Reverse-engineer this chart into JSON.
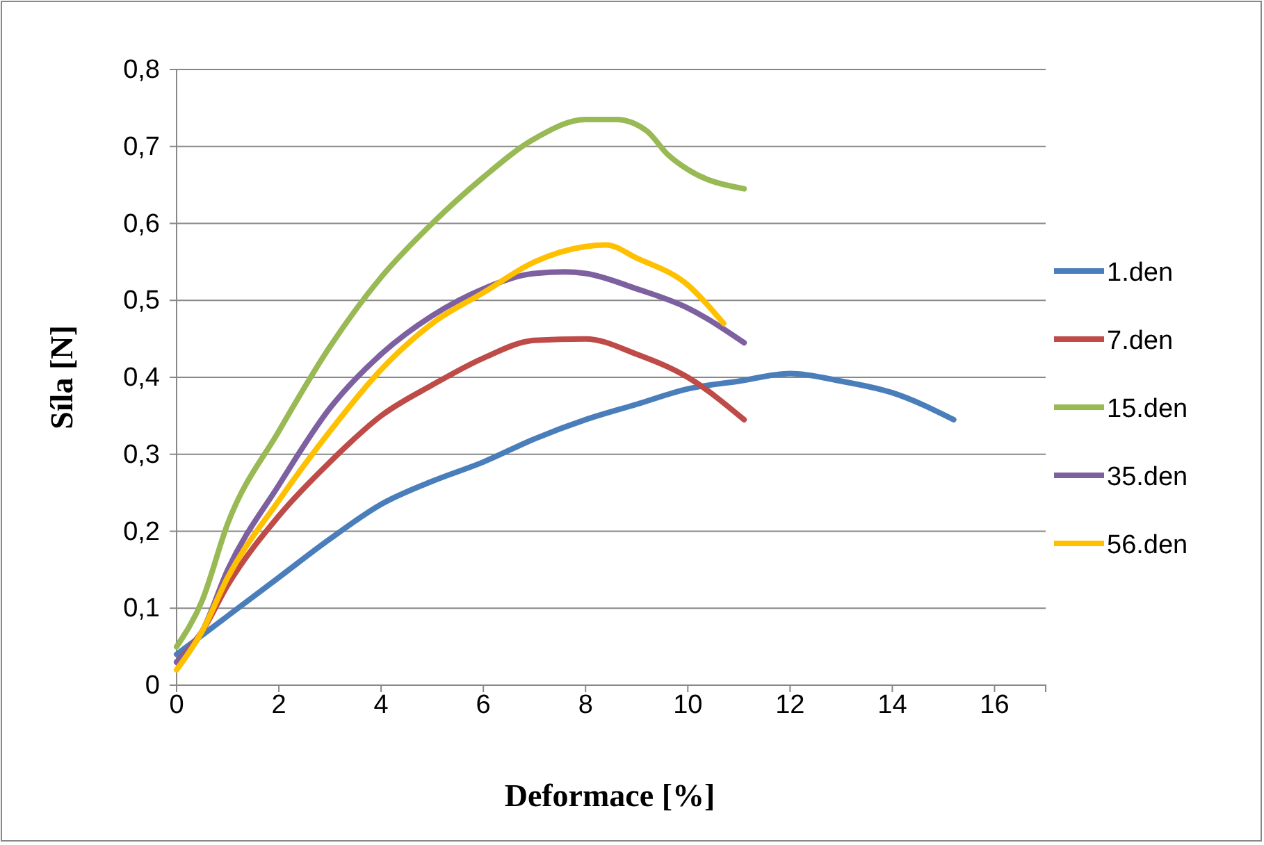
{
  "chart_data": {
    "type": "line",
    "xlabel": "Deformace [%]",
    "ylabel": "Síla [N]",
    "xlim": [
      0,
      17
    ],
    "xticks": [
      0,
      2,
      4,
      6,
      8,
      10,
      12,
      14,
      16
    ],
    "ylim": [
      0,
      0.8
    ],
    "yticks": [
      {
        "value": 0,
        "label": "0"
      },
      {
        "value": 0.1,
        "label": "0,1"
      },
      {
        "value": 0.2,
        "label": "0,2"
      },
      {
        "value": 0.3,
        "label": "0,3"
      },
      {
        "value": 0.4,
        "label": "0,4"
      },
      {
        "value": 0.5,
        "label": "0,5"
      },
      {
        "value": 0.6,
        "label": "0,6"
      },
      {
        "value": 0.7,
        "label": "0,7"
      },
      {
        "value": 0.8,
        "label": "0,8"
      }
    ],
    "grid": "y",
    "legend": "right",
    "marker": "none",
    "line_style": "solid",
    "series": [
      {
        "name": "1.den",
        "color": "#4a7ebb",
        "x": [
          0,
          0.3,
          1,
          2,
          3,
          4,
          5,
          6,
          7,
          8,
          9,
          10,
          11,
          12,
          13,
          14,
          15.2
        ],
        "values": [
          0.04,
          0.055,
          0.09,
          0.14,
          0.19,
          0.235,
          0.265,
          0.29,
          0.32,
          0.345,
          0.365,
          0.385,
          0.395,
          0.405,
          0.395,
          0.38,
          0.345
        ]
      },
      {
        "name": "7.den",
        "color": "#be4b48",
        "x": [
          0,
          0.5,
          1,
          2,
          3,
          4,
          5,
          6,
          7,
          8,
          9,
          10,
          11.1
        ],
        "values": [
          0.03,
          0.07,
          0.13,
          0.22,
          0.29,
          0.35,
          0.39,
          0.425,
          0.448,
          0.45,
          0.43,
          0.4,
          0.345
        ]
      },
      {
        "name": "15.den",
        "color": "#98b954",
        "x": [
          0,
          0.5,
          1,
          2,
          3,
          4,
          5,
          6,
          7,
          8,
          8.6,
          9.2,
          9.6,
          10,
          11.1
        ],
        "values": [
          0.05,
          0.11,
          0.21,
          0.33,
          0.44,
          0.53,
          0.6,
          0.66,
          0.71,
          0.735,
          0.735,
          0.72,
          0.69,
          0.67,
          0.645
        ]
      },
      {
        "name": "35.den",
        "color": "#7d60a0",
        "x": [
          0,
          0.5,
          1,
          2,
          3,
          4,
          5,
          6,
          7,
          7.6,
          8,
          9,
          10,
          11.1
        ],
        "values": [
          0.03,
          0.07,
          0.15,
          0.26,
          0.36,
          0.43,
          0.48,
          0.515,
          0.535,
          0.537,
          0.535,
          0.515,
          0.49,
          0.445
        ]
      },
      {
        "name": "56.den",
        "color": "#ffc000",
        "x": [
          0,
          0.5,
          1,
          2,
          3,
          4,
          5,
          6,
          7,
          8,
          8.4,
          9,
          10,
          10.7
        ],
        "values": [
          0.02,
          0.07,
          0.14,
          0.24,
          0.33,
          0.41,
          0.47,
          0.51,
          0.55,
          0.57,
          0.572,
          0.555,
          0.52,
          0.47
        ]
      }
    ]
  }
}
